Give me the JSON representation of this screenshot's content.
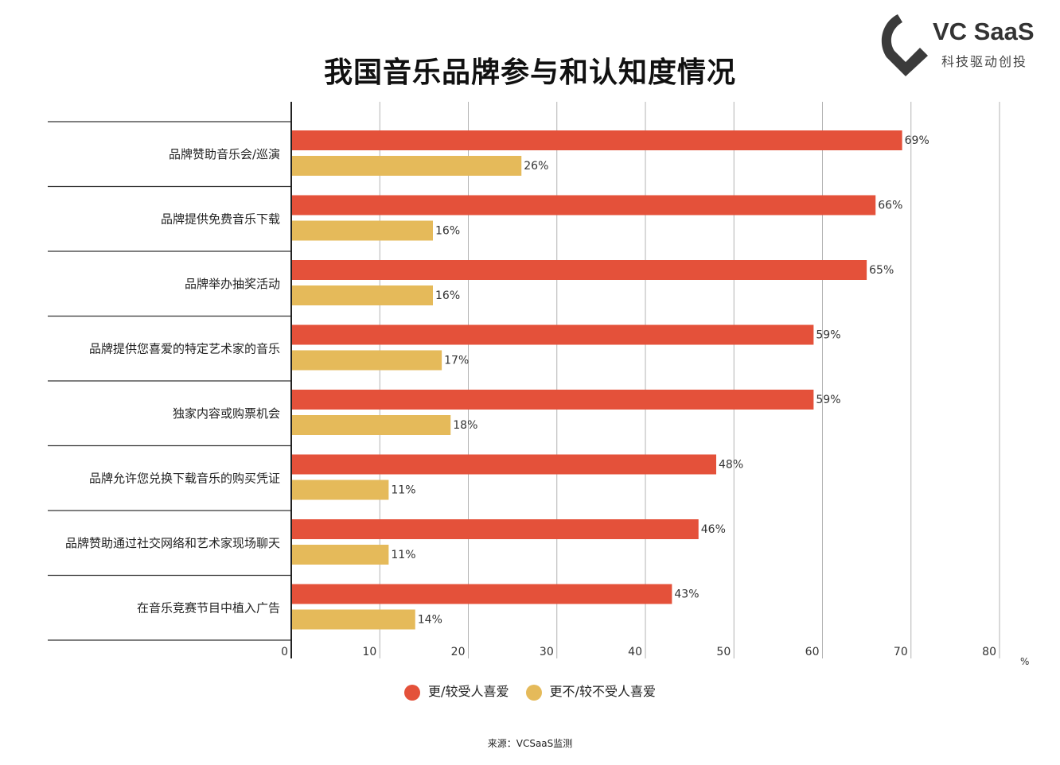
{
  "chart_data": {
    "type": "bar",
    "orientation": "horizontal",
    "title": "我国音乐品牌参与和认知度情况",
    "categories": [
      "品牌赞助音乐会/巡演",
      "品牌提供免费音乐下载",
      "品牌举办抽奖活动",
      "品牌提供您喜爱的特定艺术家的音乐",
      "独家内容或购票机会",
      "品牌允许您兑换下载音乐的购买凭证",
      "品牌赞助通过社交网络和艺术家现场聊天",
      "在音乐竞赛节目中植入广告"
    ],
    "series": [
      {
        "name": "更/较受人喜爱",
        "color": "#e4513a",
        "values": [
          69,
          66,
          65,
          59,
          59,
          48,
          46,
          43
        ],
        "labels": [
          "69%",
          "66%",
          "65%",
          "59%",
          "59%",
          "48%",
          "46%",
          "43%"
        ]
      },
      {
        "name": "更不/较不受人喜爱",
        "color": "#e5ba5a",
        "values": [
          26,
          16,
          16,
          17,
          18,
          11,
          11,
          14
        ],
        "labels": [
          "26%",
          "16%",
          "16%",
          "17%",
          "18%",
          "11%",
          "11%",
          "14%"
        ]
      }
    ],
    "xlim": [
      0,
      80
    ],
    "xticks": [
      0,
      10,
      20,
      30,
      40,
      50,
      60,
      70,
      80
    ],
    "xlabel": "%",
    "grid": true,
    "legend": "bottom"
  },
  "header": {
    "logo_text": "VC SaaS",
    "logo_subtitle": "科技驱动创投",
    "logo_color": "#3b3b3b"
  },
  "footer": {
    "source": "来源：VCSaaS监测"
  }
}
